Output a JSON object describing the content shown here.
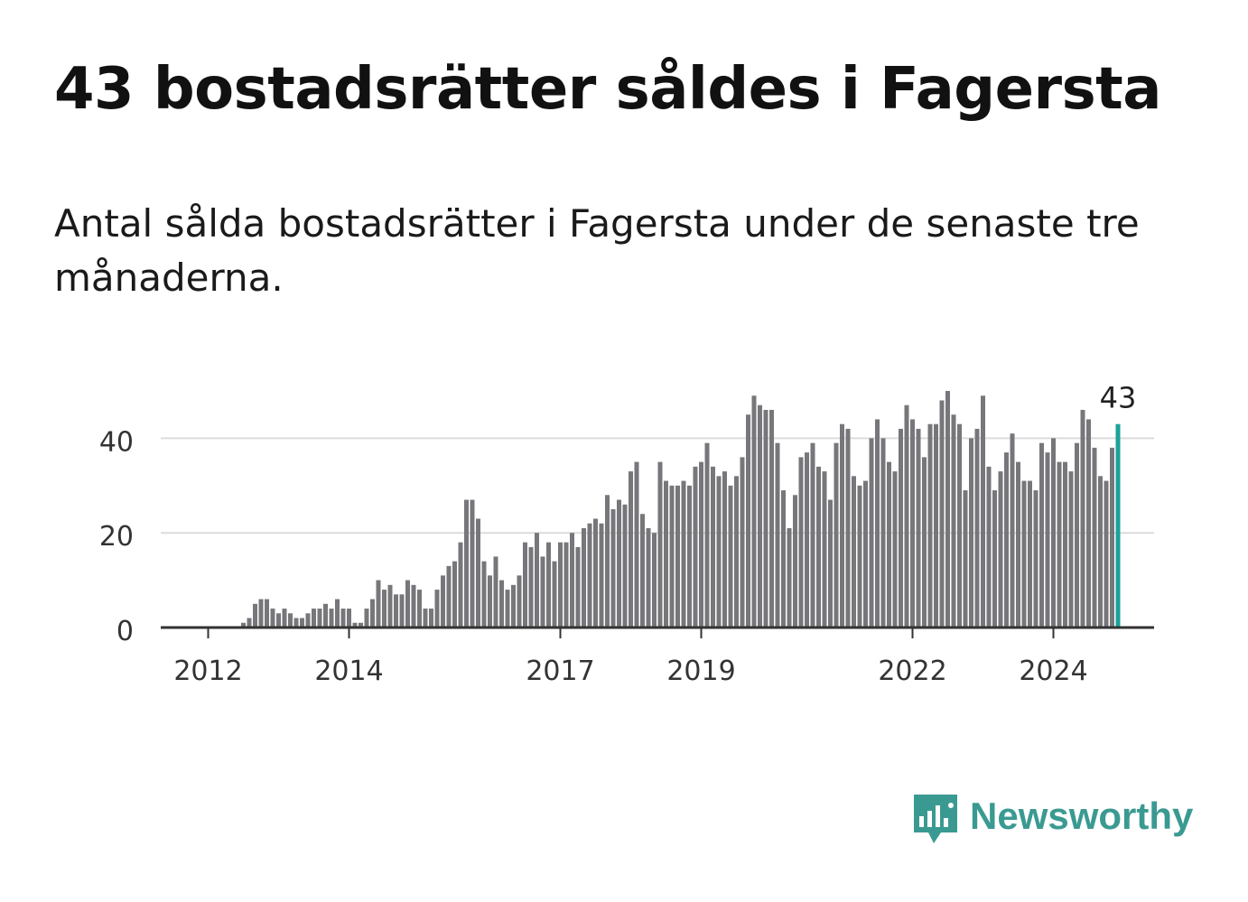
{
  "title": "43 bostadsrätter såldes i Fagersta",
  "subtitle": "Antal sålda bostadsrätter i Fagersta under de senaste tre månaderna.",
  "brand": {
    "name": "Newsworthy",
    "color": "#3a9a92"
  },
  "chart_data": {
    "type": "bar",
    "title": "43 bostadsrätter såldes i Fagersta",
    "xlabel": "",
    "ylabel": "",
    "ylim": [
      0,
      50
    ],
    "yticks": [
      0,
      20,
      40
    ],
    "xticks": [
      {
        "label": "2012",
        "index": 4
      },
      {
        "label": "2014",
        "index": 28
      },
      {
        "label": "2017",
        "index": 64
      },
      {
        "label": "2019",
        "index": 88
      },
      {
        "label": "2022",
        "index": 124
      },
      {
        "label": "2024",
        "index": 148
      }
    ],
    "grid": true,
    "bar_color": "#77777b",
    "highlight_color": "#1aa39a",
    "highlight_label": "43",
    "period": "monthly, 2011-09 to 2024-09",
    "values": [
      0,
      0,
      0,
      0,
      0,
      0,
      0,
      0,
      0,
      0,
      1,
      2,
      5,
      6,
      6,
      4,
      3,
      4,
      3,
      2,
      2,
      3,
      4,
      4,
      5,
      4,
      6,
      4,
      4,
      1,
      1,
      4,
      6,
      10,
      8,
      9,
      7,
      7,
      10,
      9,
      8,
      4,
      4,
      8,
      11,
      13,
      14,
      18,
      27,
      27,
      23,
      14,
      11,
      15,
      10,
      8,
      9,
      11,
      18,
      17,
      20,
      15,
      18,
      14,
      18,
      18,
      20,
      17,
      21,
      22,
      23,
      22,
      28,
      25,
      27,
      26,
      33,
      35,
      24,
      21,
      20,
      35,
      31,
      30,
      30,
      31,
      30,
      34,
      35,
      39,
      34,
      32,
      33,
      30,
      32,
      36,
      45,
      49,
      47,
      46,
      46,
      39,
      29,
      21,
      28,
      36,
      37,
      39,
      34,
      33,
      27,
      39,
      43,
      42,
      32,
      30,
      31,
      40,
      44,
      40,
      35,
      33,
      42,
      47,
      44,
      42,
      36,
      43,
      43,
      48,
      50,
      45,
      43,
      29,
      40,
      42,
      49,
      34,
      29,
      33,
      37,
      41,
      35,
      31,
      31,
      29,
      39,
      37,
      40,
      35,
      35,
      33,
      39,
      46,
      44,
      38,
      32,
      31,
      38,
      43
    ]
  }
}
